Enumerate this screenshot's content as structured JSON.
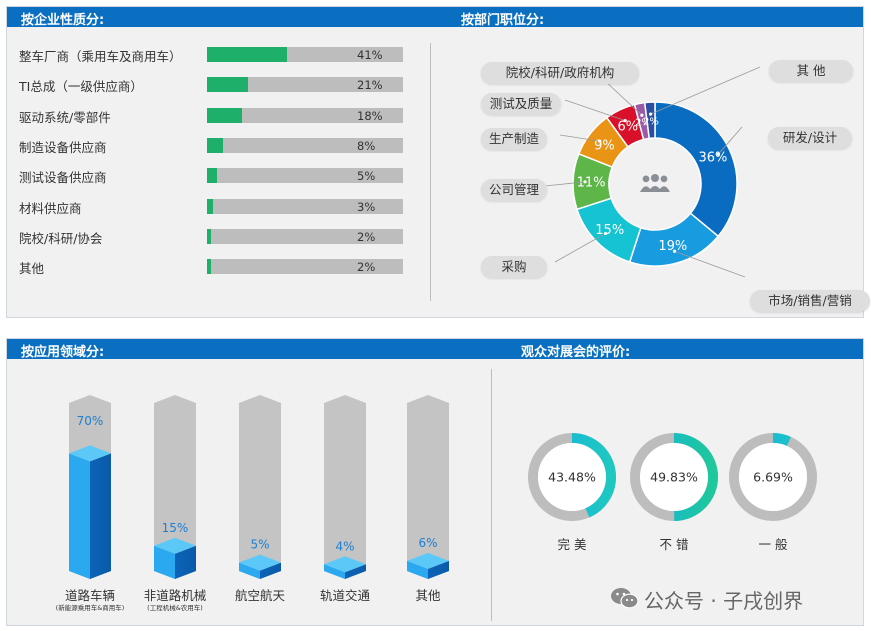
{
  "panels": {
    "nature_title": "按企业性质分:",
    "dept_title": "按部门职位分:",
    "domain_title": "按应用领域分:",
    "eval_title": "观众对展会的评价:"
  },
  "watermark": "公众号 · 子戌创界",
  "colors": {
    "header": "#0a6fc0",
    "bar_green": "#1eaf6b",
    "bar_gray": "#bdbdbd",
    "column_blue": "#1a8fe0"
  },
  "chart_data": [
    {
      "id": "nature",
      "type": "bar",
      "title": "按企业性质分:",
      "categories": [
        "整车厂商（乘用车及商用车）",
        "TI总成（一级供应商）",
        "驱动系统/零部件",
        "制造设备供应商",
        "测试设备供应商",
        "材料供应商",
        "院校/科研/协会",
        "其他"
      ],
      "values": [
        41,
        21,
        18,
        8,
        5,
        3,
        2,
        2
      ],
      "value_labels": [
        "41%",
        "21%",
        "18%",
        "8%",
        "5%",
        "3%",
        "2%",
        "2%"
      ],
      "ylim": [
        0,
        100
      ]
    },
    {
      "id": "dept",
      "type": "pie",
      "title": "按部门职位分:",
      "slices": [
        {
          "label": "研发/设计",
          "value": 36,
          "pct": "36%",
          "color": "#0a6cc0"
        },
        {
          "label": "市场/销售/营销",
          "value": 19,
          "pct": "19%",
          "color": "#199be0"
        },
        {
          "label": "采购",
          "value": 15,
          "pct": "15%",
          "color": "#15c3d2"
        },
        {
          "label": "公司管理",
          "value": 11,
          "pct": "11%",
          "color": "#5eb548"
        },
        {
          "label": "生产制造",
          "value": 9,
          "pct": "9%",
          "color": "#ea9416"
        },
        {
          "label": "测试及质量",
          "value": 6,
          "pct": "6%",
          "color": "#d8102a"
        },
        {
          "label": "院校/科研/政府机构",
          "value": 2,
          "pct": "2%",
          "color": "#9b5aa5"
        },
        {
          "label": "其 他",
          "value": 2,
          "pct": "2%",
          "color": "#2b4fa0"
        }
      ],
      "center_icon": "people-icon"
    },
    {
      "id": "domain",
      "type": "bar",
      "title": "按应用领域分:",
      "categories": [
        "道路车辆",
        "非道路机械",
        "航空航天",
        "轨道交通",
        "其他"
      ],
      "subcaptions": [
        "(新能源乘用车&商用车)",
        "(工程机械&农用车)",
        "",
        "",
        ""
      ],
      "values": [
        70,
        15,
        5,
        4,
        6
      ],
      "value_labels": [
        "70%",
        "15%",
        "5%",
        "4%",
        "6%"
      ],
      "ylim": [
        0,
        100
      ]
    },
    {
      "id": "eval",
      "type": "pie",
      "title": "观众对展会的评价:",
      "rings": [
        {
          "label": "完 美",
          "value": 43.48,
          "pct": "43.48%"
        },
        {
          "label": "不 错",
          "value": 49.83,
          "pct": "49.83%"
        },
        {
          "label": "一 般",
          "value": 6.69,
          "pct": "6.69%"
        }
      ]
    }
  ]
}
